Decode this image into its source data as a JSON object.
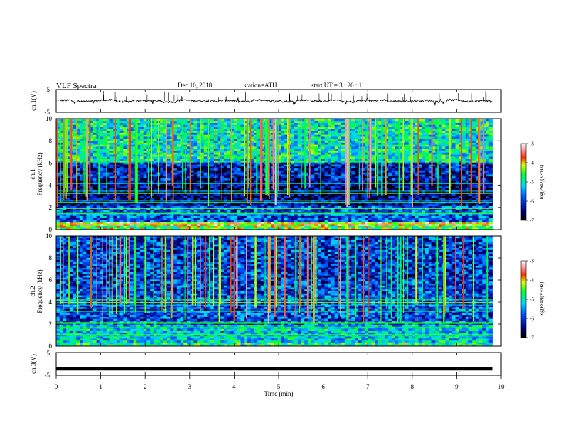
{
  "header": {
    "title": "VLF  Spectra",
    "date": "Dec.10, 2018",
    "station": "station=ATH",
    "start_ut": "start  UT  =    3  : 20 : 1"
  },
  "chart_data": [
    {
      "type": "line",
      "panel": "ch1-waveform",
      "ylabel": "ch.1(V)",
      "ylim": [
        -5,
        5
      ],
      "yticks": [
        "5",
        "-5"
      ],
      "xlim": [
        0,
        10
      ],
      "data_end_min": 9.8,
      "series": [
        {
          "values": [
            0.3,
            -0.2,
            0.1,
            0.4,
            -0.3,
            0.2,
            0.0,
            -0.4,
            0.3,
            0.1,
            -0.1,
            0.2,
            -0.3,
            0.4,
            0.0,
            -0.2,
            0.3,
            -0.1,
            0.2,
            -0.4,
            0.1,
            0.3,
            -0.2,
            0.0,
            0.2,
            -0.3,
            0.4,
            -0.1,
            0.1,
            -0.2
          ]
        }
      ],
      "color": "#000000"
    },
    {
      "type": "heatmap",
      "panel": "ch1-spectrogram",
      "ylabel": "ch.1\nFrequency  (kHz)",
      "ylim": [
        0,
        10
      ],
      "yticks": [
        "0",
        "2",
        "4",
        "6",
        "8",
        "10"
      ],
      "xlim": [
        0,
        10
      ],
      "data_end_min": 9.8,
      "colorbar": {
        "label": "log(PSD)(V²/Hz)",
        "range": [
          -7,
          -3
        ],
        "ticks": [
          "-3",
          "-4",
          "-5",
          "-6",
          "-7"
        ]
      },
      "level_profile": [
        {
          "freq_khz": [
            0,
            0.3
          ],
          "log_psd": -4.5
        },
        {
          "freq_khz": [
            0.3,
            0.8
          ],
          "log_psd": -3.8
        },
        {
          "freq_khz": [
            0.8,
            2.2
          ],
          "log_psd": -5.8
        },
        {
          "freq_khz": [
            2.2,
            4.5
          ],
          "log_psd": -6.5
        },
        {
          "freq_khz": [
            4.5,
            6.0
          ],
          "log_psd": -6.2
        },
        {
          "freq_khz": [
            6.0,
            10.0
          ],
          "log_psd": -5.0
        }
      ]
    },
    {
      "type": "heatmap",
      "panel": "ch2-spectrogram",
      "ylabel": "ch.2\nFrequency  (kHz)",
      "ylim": [
        0,
        10
      ],
      "yticks": [
        "0",
        "2",
        "4",
        "6",
        "8",
        "10"
      ],
      "xlim": [
        0,
        10
      ],
      "data_end_min": 9.8,
      "colorbar": {
        "label": "log(PSD)(V²/Hz)",
        "range": [
          -7,
          -3
        ],
        "ticks": [
          "-3",
          "-4",
          "-5",
          "-6",
          "-7"
        ]
      },
      "level_profile": [
        {
          "freq_khz": [
            0,
            0.3
          ],
          "log_psd": -4.8
        },
        {
          "freq_khz": [
            0.3,
            2.0
          ],
          "log_psd": -5.2
        },
        {
          "freq_khz": [
            2.0,
            5.5
          ],
          "log_psd": -5.9
        },
        {
          "freq_khz": [
            5.5,
            10.0
          ],
          "log_psd": -6.0
        }
      ]
    },
    {
      "type": "line",
      "panel": "ch3-waveform",
      "ylabel": "ch.3(V)",
      "ylim": [
        -5,
        5
      ],
      "yticks": [
        "5",
        "-5"
      ],
      "xlim": [
        0,
        10
      ],
      "xlabel": "Time  (min)",
      "xticks": [
        "0",
        "1",
        "2",
        "3",
        "4",
        "5",
        "6",
        "7",
        "8",
        "9",
        "10"
      ],
      "data_end_min": 9.8,
      "series": [
        {
          "values": [
            -2.2,
            -2.2
          ]
        }
      ],
      "color": "#000000"
    }
  ]
}
